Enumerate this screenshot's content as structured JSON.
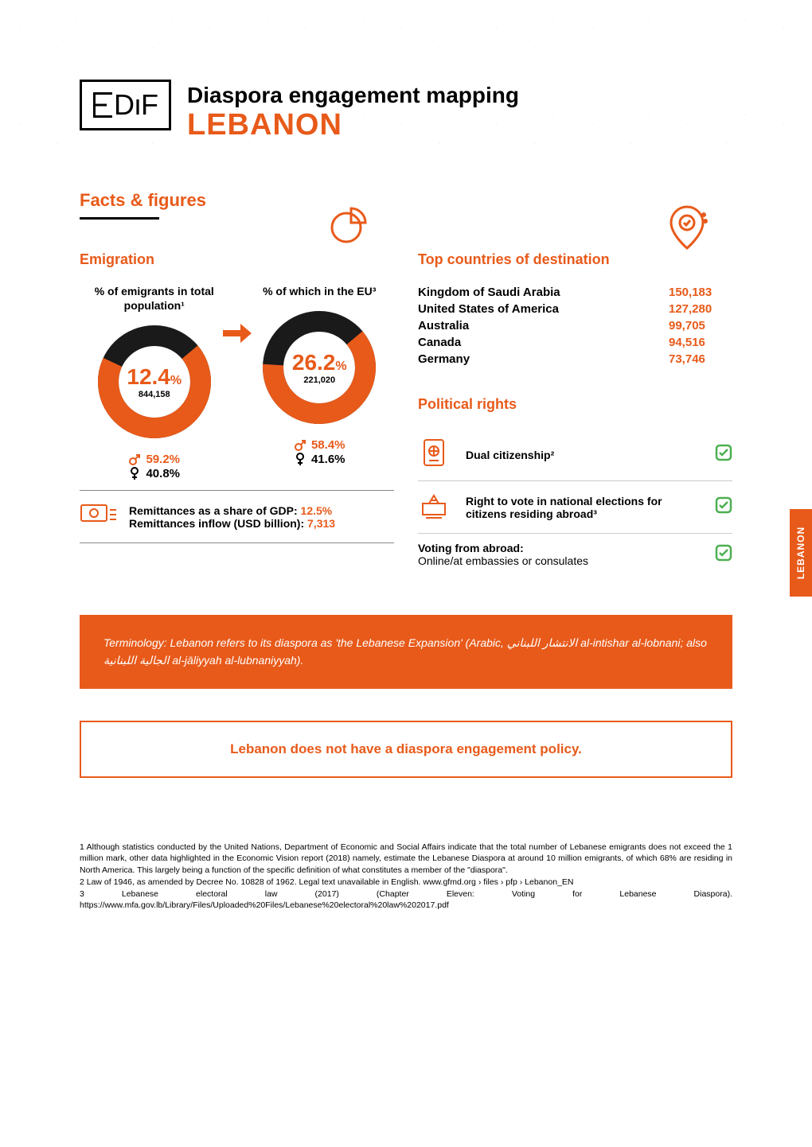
{
  "brand": {
    "logo_text": "DıF",
    "title": "Diaspora engagement mapping",
    "country": "LEBANON"
  },
  "side_tab": "LEBANON",
  "facts_heading": "Facts & figures",
  "emigration": {
    "heading": "Emigration",
    "donut1": {
      "label": "% of emigrants in total population¹",
      "pct": "12.4",
      "pct_unit": "%",
      "abs": "844,158",
      "fill_pct": 68,
      "male": "59.2%",
      "female": "40.8%",
      "colors": {
        "fill": "#e85a1a",
        "track": "#1a1a1a"
      }
    },
    "donut2": {
      "label": "% of which in the EU³",
      "pct": "26.2",
      "pct_unit": "%",
      "abs": "221,020",
      "fill_pct": 62,
      "male": "58.4%",
      "female": "41.6%",
      "colors": {
        "fill": "#e85a1a",
        "track": "#1a1a1a"
      }
    }
  },
  "remittances": {
    "line1_label": "Remittances as a share of GDP: ",
    "line1_val": "12.5%",
    "line2_label": "Remittances inflow (USD billion): ",
    "line2_val": "7,313"
  },
  "destinations": {
    "heading": "Top countries of destination",
    "rows": [
      {
        "country": "Kingdom of Saudi Arabia",
        "value": "150,183"
      },
      {
        "country": "United States of America",
        "value": "127,280"
      },
      {
        "country": "Australia",
        "value": "99,705"
      },
      {
        "country": "Canada",
        "value": "94,516"
      },
      {
        "country": "Germany",
        "value": "73,746"
      }
    ]
  },
  "political_rights": {
    "heading": "Political rights",
    "item1": "Dual citizenship²",
    "item2": "Right to vote in national elections for citizens residing abroad³",
    "voting_label": "Voting from abroad:",
    "voting_value": "Online/at embassies or consulates"
  },
  "terminology": "Terminology: Lebanon refers to its diaspora as 'the Lebanese Expansion' (Arabic, الانتشار اللبناني al-intishar al-lobnani; also الجالية اللبنانية al-jāliyyah al-lubnaniyyah).",
  "policy_statement": "Lebanon does not have a diaspora engagement policy.",
  "footnotes": {
    "f1": "1 Although statistics conducted by the United Nations, Department of Economic and Social Affairs indicate that the total number of Lebanese emigrants does not exceed the 1 million mark, other data highlighted in the Economic Vision report (2018) namely, estimate the Lebanese Diaspora at around 10 million emigrants, of which 68% are residing in North America. This largely being a function of the specific definition of what constitutes a member of the \"diaspora\".",
    "f2": "2 Law of 1946, as amended by Decree No. 10828 of 1962. Legal text unavailable in English. www.gfmd.org › files › pfp › Lebanon_EN",
    "f3": "3 Lebanese electoral law (2017) (Chapter Eleven: Voting for Lebanese Diaspora). https://www.mfa.gov.lb/Library/Files/Uploaded%20Files/Lebanese%20electoral%20law%202017.pdf"
  },
  "colors": {
    "accent": "#e85a1a",
    "dark": "#1a1a1a",
    "check": "#4caf50"
  }
}
